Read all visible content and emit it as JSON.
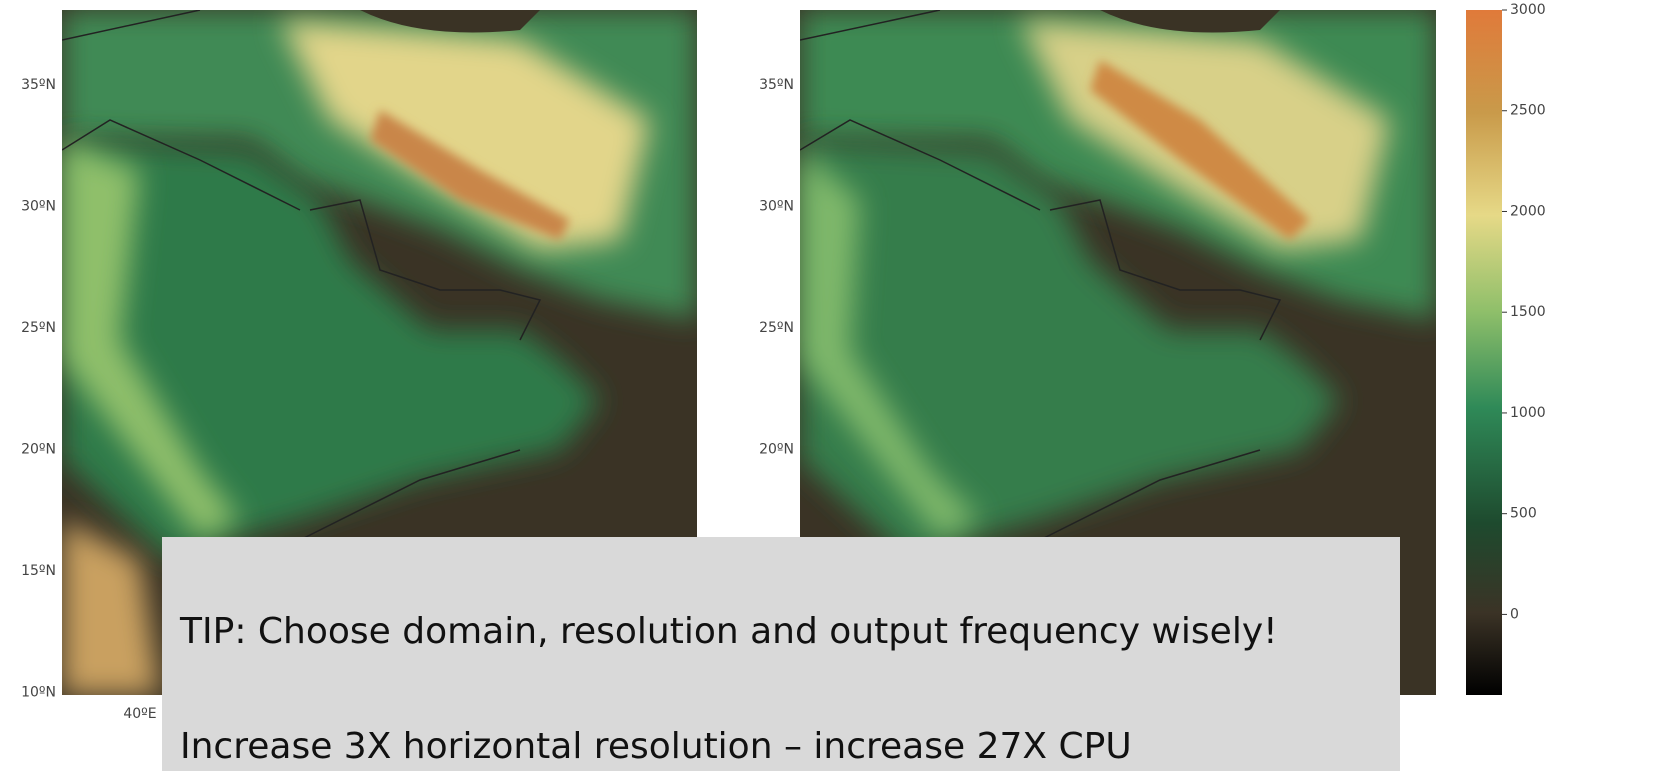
{
  "left_map": {
    "lat_labels": [
      "35ºN",
      "30ºN",
      "25ºN",
      "20ºN",
      "15ºN",
      "10ºN"
    ],
    "lon_label": "40ºE"
  },
  "right_map": {
    "lat_labels": [
      "35ºN",
      "30ºN",
      "25ºN",
      "20ºN"
    ]
  },
  "colorbar": {
    "range": [
      -400,
      3000
    ],
    "ticks": [
      0,
      500,
      1000,
      1500,
      2000,
      2500,
      3000
    ]
  },
  "tip": {
    "lines": [
      "TIP: Choose domain, resolution and output frequency wisely!",
      "Increase 3X horizontal resolution – increase 27X CPU"
    ]
  }
}
